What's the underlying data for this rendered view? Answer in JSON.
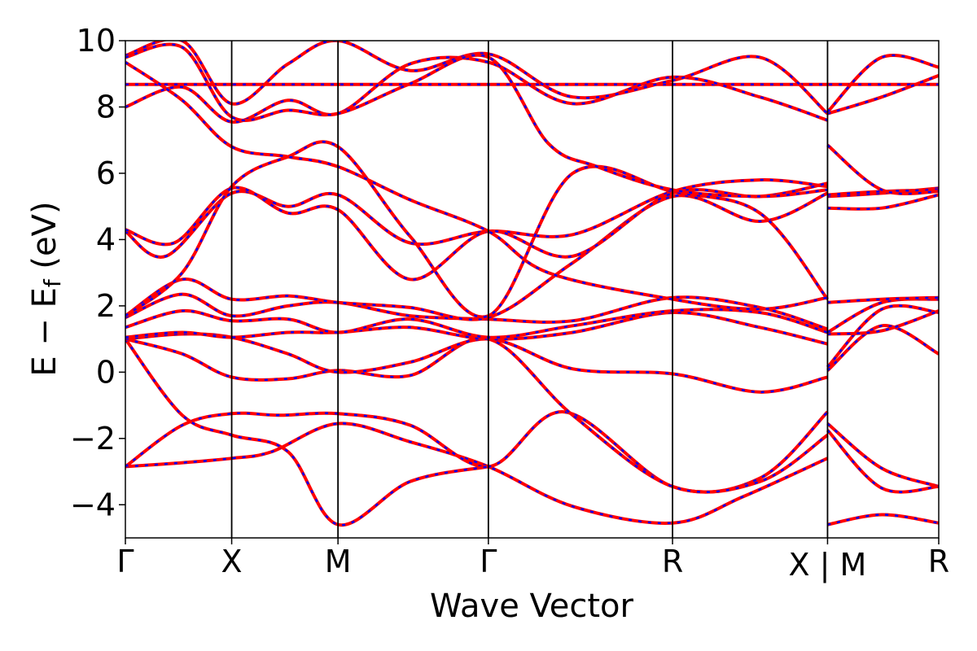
{
  "chart_data": {
    "type": "line",
    "title": "",
    "xlabel": "Wave Vector",
    "ylabel_main": "E − E",
    "ylabel_sub": "f",
    "ylabel_unit": " (eV)",
    "ylim": [
      -5,
      10
    ],
    "xlim": [
      0,
      1
    ],
    "yticks": [
      -4,
      -2,
      0,
      2,
      4,
      6,
      8,
      10
    ],
    "ytick_labels": [
      "−4",
      "−2",
      "0",
      "2",
      "4",
      "6",
      "8",
      "10"
    ],
    "xticks": [
      {
        "pos": 0.0,
        "label": "Γ"
      },
      {
        "pos": 0.1307,
        "label": "X"
      },
      {
        "pos": 0.2614,
        "label": "M"
      },
      {
        "pos": 0.4463,
        "label": "Γ"
      },
      {
        "pos": 0.6727,
        "label": "R"
      },
      {
        "pos": 0.8633,
        "label": "X | M"
      },
      {
        "pos": 1.0,
        "label": "R"
      }
    ],
    "vlines": [
      0.1307,
      0.2614,
      0.4463,
      0.6727,
      0.8633
    ],
    "grid": false,
    "legend": "none",
    "styles": {
      "solid_color": "#ff0000",
      "dashed_color": "#0000ff"
    },
    "series": [
      {
        "values": [
          [
            0,
            8.68
          ],
          [
            0.25,
            8.68
          ],
          [
            0.5,
            8.68
          ],
          [
            0.75,
            8.68
          ],
          [
            1.0,
            8.68
          ]
        ]
      },
      {
        "values": [
          [
            0,
            -2.85
          ],
          [
            0.06,
            -2.75
          ],
          [
            0.1307,
            -2.6
          ],
          [
            0.18,
            -2.4
          ],
          [
            0.2614,
            -1.55
          ],
          [
            0.35,
            -2.1
          ],
          [
            0.4463,
            -2.85
          ],
          [
            0.55,
            -4.05
          ],
          [
            0.6727,
            -4.55
          ],
          [
            0.76,
            -3.75
          ],
          [
            0.8633,
            -2.6
          ]
        ]
      },
      {
        "values": [
          [
            0,
            -2.85
          ],
          [
            0.07,
            -1.6
          ],
          [
            0.1307,
            -1.25
          ],
          [
            0.19,
            -1.3
          ],
          [
            0.2614,
            -1.25
          ],
          [
            0.35,
            -1.6
          ],
          [
            0.4463,
            -2.85
          ],
          [
            0.54,
            -1.2
          ],
          [
            0.6727,
            -3.45
          ],
          [
            0.78,
            -3.2
          ],
          [
            0.8633,
            -1.2
          ]
        ]
      },
      {
        "values": [
          [
            0,
            1.0
          ],
          [
            0.07,
            -1.3
          ],
          [
            0.1307,
            -1.9
          ],
          [
            0.2,
            -2.4
          ],
          [
            0.2614,
            -4.6
          ],
          [
            0.35,
            -3.3
          ],
          [
            0.4463,
            -2.85
          ]
        ]
      },
      {
        "values": [
          [
            0,
            1.0
          ],
          [
            0.07,
            0.55
          ],
          [
            0.1307,
            -0.15
          ],
          [
            0.2,
            -0.2
          ],
          [
            0.2614,
            0.05
          ],
          [
            0.35,
            -0.1
          ],
          [
            0.4463,
            1.0
          ],
          [
            0.55,
            -1.3
          ],
          [
            0.6727,
            -3.45
          ],
          [
            0.78,
            -3.3
          ],
          [
            0.8633,
            -1.9
          ]
        ]
      },
      {
        "values": [
          [
            0,
            1.0
          ],
          [
            0.07,
            1.15
          ],
          [
            0.1307,
            1.05
          ],
          [
            0.2,
            0.55
          ],
          [
            0.2614,
            0.0
          ],
          [
            0.35,
            0.3
          ],
          [
            0.4463,
            1.0
          ],
          [
            0.55,
            0.1
          ],
          [
            0.6727,
            -0.05
          ],
          [
            0.78,
            -0.6
          ],
          [
            0.8633,
            -0.15
          ]
        ]
      },
      {
        "values": [
          [
            0,
            1.05
          ],
          [
            0.07,
            1.2
          ],
          [
            0.1307,
            1.05
          ],
          [
            0.2,
            1.2
          ],
          [
            0.2614,
            1.2
          ],
          [
            0.35,
            1.35
          ],
          [
            0.4463,
            1.0
          ],
          [
            0.55,
            1.2
          ],
          [
            0.6727,
            1.8
          ],
          [
            0.78,
            1.35
          ],
          [
            0.8633,
            0.85
          ]
        ]
      },
      {
        "values": [
          [
            0,
            1.35
          ],
          [
            0.07,
            1.85
          ],
          [
            0.1307,
            1.55
          ],
          [
            0.2,
            1.6
          ],
          [
            0.2614,
            1.2
          ],
          [
            0.35,
            1.6
          ],
          [
            0.4463,
            1.05
          ],
          [
            0.55,
            1.4
          ],
          [
            0.6727,
            1.85
          ],
          [
            0.78,
            1.8
          ],
          [
            0.8633,
            1.2
          ]
        ]
      },
      {
        "values": [
          [
            0,
            1.65
          ],
          [
            0.07,
            2.35
          ],
          [
            0.1307,
            1.7
          ],
          [
            0.2,
            2.0
          ],
          [
            0.2614,
            2.1
          ],
          [
            0.35,
            1.7
          ],
          [
            0.4463,
            1.6
          ],
          [
            0.55,
            1.55
          ],
          [
            0.6727,
            2.25
          ],
          [
            0.78,
            1.95
          ],
          [
            0.8633,
            1.3
          ]
        ]
      },
      {
        "values": [
          [
            0,
            1.7
          ],
          [
            0.07,
            2.8
          ],
          [
            0.1307,
            2.2
          ],
          [
            0.2,
            2.3
          ],
          [
            0.2614,
            2.1
          ],
          [
            0.35,
            1.95
          ],
          [
            0.4463,
            1.65
          ],
          [
            0.55,
            3.3
          ],
          [
            0.6727,
            5.3
          ],
          [
            0.78,
            4.55
          ],
          [
            0.8633,
            5.4
          ]
        ]
      },
      {
        "values": [
          [
            0,
            4.25
          ],
          [
            0.05,
            3.5
          ],
          [
            0.1307,
            5.4
          ],
          [
            0.2,
            5.0
          ],
          [
            0.2614,
            5.35
          ],
          [
            0.35,
            3.9
          ],
          [
            0.4463,
            4.25
          ],
          [
            0.55,
            4.15
          ],
          [
            0.6727,
            5.45
          ],
          [
            0.78,
            5.8
          ],
          [
            0.8633,
            5.6
          ]
        ]
      },
      {
        "values": [
          [
            0,
            4.3
          ],
          [
            0.06,
            3.9
          ],
          [
            0.1307,
            5.55
          ],
          [
            0.2,
            4.8
          ],
          [
            0.2614,
            4.9
          ],
          [
            0.35,
            2.8
          ],
          [
            0.4463,
            4.25
          ],
          [
            0.55,
            3.5
          ],
          [
            0.6727,
            5.4
          ],
          [
            0.78,
            5.3
          ],
          [
            0.8633,
            5.7
          ]
        ]
      },
      {
        "values": [
          [
            0,
            1.7
          ],
          [
            0.07,
            3.0
          ],
          [
            0.1307,
            5.6
          ],
          [
            0.2,
            6.5
          ],
          [
            0.2614,
            6.8
          ],
          [
            0.35,
            4.1
          ],
          [
            0.4463,
            1.7
          ],
          [
            0.55,
            6.0
          ],
          [
            0.6727,
            5.45
          ],
          [
            0.78,
            4.8
          ],
          [
            0.8633,
            2.2
          ]
        ]
      },
      {
        "values": [
          [
            0,
            8.0
          ],
          [
            0.07,
            8.6
          ],
          [
            0.1307,
            7.55
          ],
          [
            0.2,
            8.2
          ],
          [
            0.2614,
            7.8
          ],
          [
            0.35,
            9.3
          ],
          [
            0.4463,
            9.35
          ],
          [
            0.55,
            8.1
          ],
          [
            0.6727,
            8.9
          ],
          [
            0.78,
            8.3
          ],
          [
            0.8633,
            7.6
          ]
        ]
      },
      {
        "values": [
          [
            0,
            9.35
          ],
          [
            0.07,
            8.2
          ],
          [
            0.1307,
            6.8
          ],
          [
            0.2,
            6.5
          ],
          [
            0.2614,
            6.2
          ],
          [
            0.35,
            5.2
          ],
          [
            0.4463,
            4.25
          ],
          [
            0.52,
            3.0
          ],
          [
            0.6727,
            2.2
          ],
          [
            0.78,
            1.9
          ],
          [
            0.8633,
            2.25
          ]
        ]
      },
      {
        "values": [
          [
            0,
            9.55
          ],
          [
            0.07,
            10.0
          ],
          [
            0.1307,
            8.1
          ],
          [
            0.2,
            9.3
          ],
          [
            0.2614,
            10.0
          ],
          [
            0.35,
            9.1
          ],
          [
            0.4463,
            9.6
          ],
          [
            0.55,
            8.3
          ],
          [
            0.6727,
            8.8
          ],
          [
            0.78,
            9.5
          ],
          [
            0.8633,
            7.8
          ]
        ]
      },
      {
        "values": [
          [
            0,
            9.5
          ],
          [
            0.07,
            9.8
          ],
          [
            0.1307,
            7.7
          ],
          [
            0.2,
            7.9
          ],
          [
            0.2614,
            7.8
          ],
          [
            0.35,
            8.7
          ],
          [
            0.4463,
            9.5
          ],
          [
            0.52,
            6.9
          ],
          [
            0.58,
            6.2
          ],
          [
            0.6727,
            5.5
          ],
          [
            0.78,
            5.3
          ],
          [
            0.8633,
            5.5
          ]
        ]
      },
      {
        "values": [
          [
            0.8633,
            -4.6
          ],
          [
            0.93,
            -4.3
          ],
          [
            1.0,
            -4.55
          ]
        ]
      },
      {
        "values": [
          [
            0.8633,
            -1.55
          ],
          [
            0.93,
            -2.9
          ],
          [
            1.0,
            -3.45
          ]
        ]
      },
      {
        "values": [
          [
            0.8633,
            -1.75
          ],
          [
            0.93,
            -3.5
          ],
          [
            1.0,
            -3.45
          ]
        ]
      },
      {
        "values": [
          [
            0.8633,
            0.05
          ],
          [
            0.93,
            1.4
          ],
          [
            1.0,
            0.55
          ]
        ]
      },
      {
        "values": [
          [
            0.8633,
            0.15
          ],
          [
            0.93,
            1.9
          ],
          [
            1.0,
            1.8
          ]
        ]
      },
      {
        "values": [
          [
            0.8633,
            1.15
          ],
          [
            0.93,
            1.25
          ],
          [
            1.0,
            1.85
          ]
        ]
      },
      {
        "values": [
          [
            0.8633,
            1.2
          ],
          [
            0.93,
            2.1
          ],
          [
            1.0,
            2.2
          ]
        ]
      },
      {
        "values": [
          [
            0.8633,
            2.1
          ],
          [
            0.93,
            2.2
          ],
          [
            1.0,
            2.25
          ]
        ]
      },
      {
        "values": [
          [
            0.8633,
            4.95
          ],
          [
            0.93,
            4.95
          ],
          [
            1.0,
            5.35
          ]
        ]
      },
      {
        "values": [
          [
            0.8633,
            5.3
          ],
          [
            0.93,
            5.4
          ],
          [
            1.0,
            5.55
          ]
        ]
      },
      {
        "values": [
          [
            0.8633,
            5.35
          ],
          [
            0.93,
            5.45
          ],
          [
            1.0,
            5.5
          ]
        ]
      },
      {
        "values": [
          [
            0.8633,
            6.85
          ],
          [
            0.93,
            5.5
          ],
          [
            1.0,
            5.45
          ]
        ]
      },
      {
        "values": [
          [
            0.8633,
            7.8
          ],
          [
            0.93,
            8.3
          ],
          [
            1.0,
            8.95
          ]
        ]
      },
      {
        "values": [
          [
            0.8633,
            7.85
          ],
          [
            0.93,
            9.5
          ],
          [
            1.0,
            9.2
          ]
        ]
      }
    ]
  }
}
